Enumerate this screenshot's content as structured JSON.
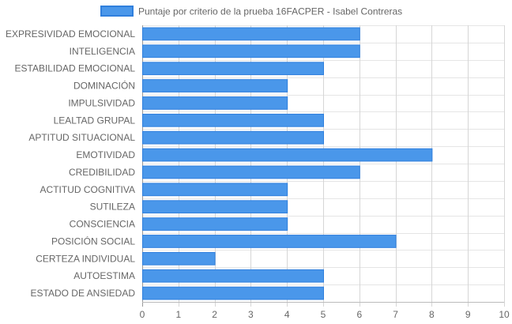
{
  "chart_data": {
    "type": "bar",
    "orientation": "horizontal",
    "categories": [
      "EXPRESIVIDAD EMOCIONAL",
      "INTELIGENCIA",
      "ESTABILIDAD EMOCIONAL",
      "DOMINACIÓN",
      "IMPULSIVIDAD",
      "LEALTAD GRUPAL",
      "APTITUD SITUACIONAL",
      "EMOTIVIDAD",
      "CREDIBILIDAD",
      "ACTITUD COGNITIVA",
      "SUTILEZA",
      "CONSCIENCIA",
      "POSICIÓN SOCIAL",
      "CERTEZA INDIVIDUAL",
      "AUTOESTIMA",
      "ESTADO DE ANSIEDAD"
    ],
    "series": [
      {
        "name": "Puntaje por criterio de la prueba 16FACPER - Isabel Contreras",
        "values": [
          6,
          6,
          5,
          4,
          4,
          5,
          5,
          8,
          6,
          4,
          4,
          4,
          7,
          2,
          5,
          5
        ],
        "color": "#4a97ea",
        "border_color": "#2f7fdd"
      }
    ],
    "xlim": [
      0,
      10
    ],
    "x_ticks": [
      0,
      1,
      2,
      3,
      4,
      5,
      6,
      7,
      8,
      9,
      10
    ],
    "grid": true,
    "legend_position": "top",
    "title": "",
    "xlabel": "",
    "ylabel": ""
  }
}
